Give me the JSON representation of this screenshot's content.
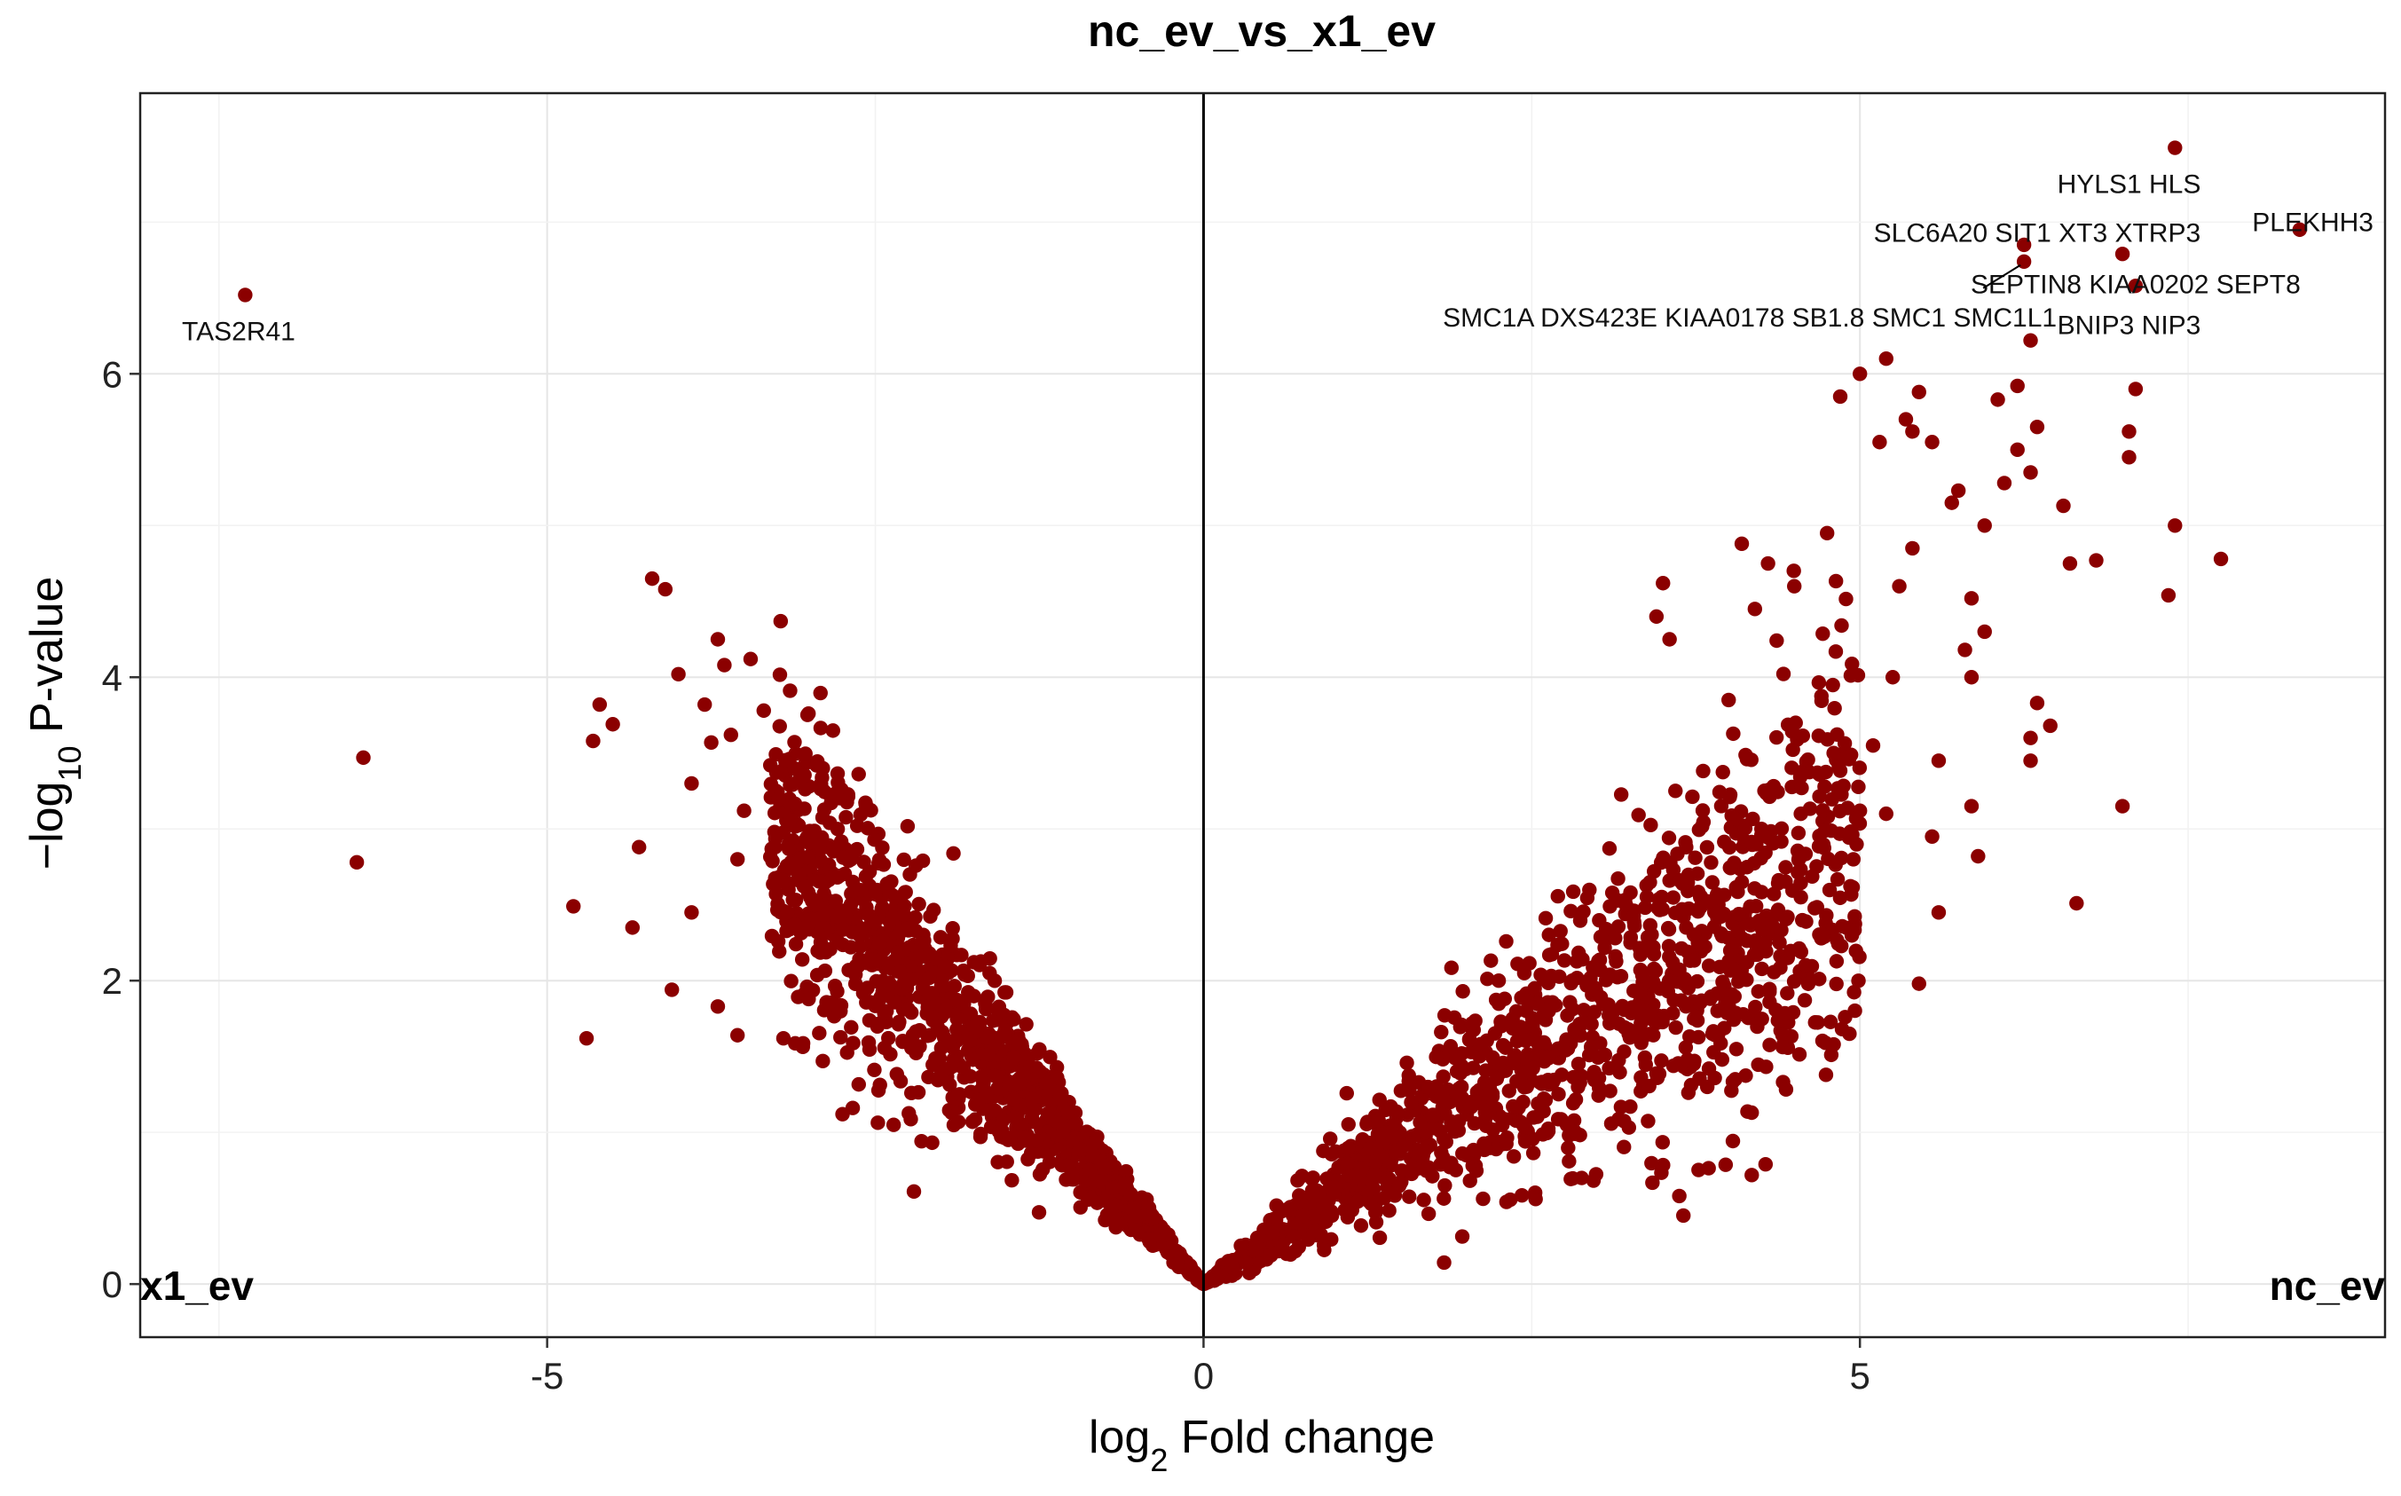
{
  "chart_data": {
    "type": "scatter",
    "title": "nc_ev_vs_x1_ev",
    "xlabel": {
      "prefix": "log",
      "sub": "2",
      "rest": " Fold change"
    },
    "ylabel": {
      "prefix": "−log",
      "sub": "10",
      "rest": " P-value"
    },
    "xlim": [
      -8.1,
      9.0
    ],
    "ylim": [
      -0.35,
      7.85
    ],
    "x_ticks": [
      {
        "value": -5,
        "label": "-5"
      },
      {
        "value": 0,
        "label": "0"
      },
      {
        "value": 5,
        "label": "5"
      }
    ],
    "y_ticks": [
      {
        "value": 0,
        "label": "0"
      },
      {
        "value": 2,
        "label": "2"
      },
      {
        "value": 4,
        "label": "4"
      },
      {
        "value": 6,
        "label": "6"
      }
    ],
    "grid": true,
    "zero_line_x": 0,
    "point_color": "#8B0000",
    "corner_labels": {
      "left": "x1_ev",
      "right": "nc_ev"
    },
    "highlighted_points": [
      {
        "x": -7.3,
        "y": 6.52,
        "label": "TAS2R41"
      },
      {
        "x": 7.4,
        "y": 7.49,
        "label": "HYLS1 HLS"
      },
      {
        "x": 8.35,
        "y": 6.95,
        "label": "PLEKHH3"
      },
      {
        "x": 6.25,
        "y": 6.85,
        "label": "SLC6A20 SIT1 XT3 XTRP3"
      },
      {
        "x": 7.0,
        "y": 6.79,
        "label": "SEPTIN8 KIAA0202 SEPT8"
      },
      {
        "x": 6.25,
        "y": 6.74,
        "label": "SMC1A DXS423E KIAA0178 SB1.8 SMC1 SMC1L1"
      },
      {
        "x": 7.1,
        "y": 6.58,
        "label": "BNIP3 NIP3"
      }
    ],
    "outlier_points": [
      [
        -6.4,
        3.47
      ],
      [
        -6.45,
        2.78
      ],
      [
        -4.8,
        2.49
      ],
      [
        -4.7,
        1.62
      ],
      [
        -4.5,
        3.69
      ],
      [
        -4.6,
        3.82
      ],
      [
        -4.65,
        3.58
      ],
      [
        -4.35,
        2.35
      ],
      [
        -4.3,
        2.88
      ],
      [
        -4.2,
        4.65
      ],
      [
        -4.1,
        4.58
      ],
      [
        -4.0,
        4.02
      ],
      [
        -3.9,
        3.3
      ],
      [
        -3.9,
        2.45
      ],
      [
        -3.8,
        3.82
      ],
      [
        -3.75,
        3.57
      ],
      [
        -3.7,
        4.25
      ],
      [
        -3.65,
        4.08
      ],
      [
        -3.6,
        3.62
      ],
      [
        -3.5,
        3.12
      ],
      [
        -3.55,
        2.8
      ],
      [
        -3.45,
        4.12
      ],
      [
        -3.35,
        3.78
      ],
      [
        -3.3,
        3.42
      ],
      [
        -4.05,
        1.94
      ],
      [
        -3.7,
        1.83
      ],
      [
        -3.55,
        1.64
      ],
      [
        -3.05,
        3.35
      ],
      [
        -2.9,
        3.4
      ],
      [
        -2.9,
        1.47
      ],
      [
        -3.2,
        1.62
      ],
      [
        -2.75,
        1.12
      ],
      [
        7.4,
        5.0
      ],
      [
        7.35,
        4.54
      ],
      [
        7.75,
        4.78
      ],
      [
        6.8,
        4.77
      ],
      [
        6.6,
        4.75
      ],
      [
        7.1,
        5.9
      ],
      [
        7.05,
        5.62
      ],
      [
        7.05,
        5.45
      ],
      [
        6.55,
        5.13
      ],
      [
        7.0,
        3.15
      ],
      [
        6.65,
        2.51
      ],
      [
        6.45,
        3.68
      ],
      [
        6.3,
        3.6
      ],
      [
        6.3,
        3.45
      ],
      [
        6.35,
        3.83
      ],
      [
        6.3,
        6.22
      ],
      [
        6.35,
        5.65
      ],
      [
        6.05,
        5.83
      ],
      [
        6.2,
        5.92
      ],
      [
        6.2,
        5.5
      ],
      [
        6.3,
        5.35
      ],
      [
        6.1,
        5.28
      ],
      [
        5.95,
        4.3
      ],
      [
        5.85,
        4.52
      ],
      [
        5.8,
        4.18
      ],
      [
        5.75,
        5.23
      ],
      [
        5.7,
        5.15
      ],
      [
        5.95,
        5.0
      ],
      [
        5.85,
        4.0
      ],
      [
        5.9,
        2.82
      ],
      [
        5.85,
        3.15
      ],
      [
        5.55,
        2.95
      ],
      [
        5.6,
        2.45
      ],
      [
        5.45,
        1.98
      ],
      [
        5.6,
        3.45
      ],
      [
        5.2,
        6.1
      ],
      [
        5.0,
        6.0
      ],
      [
        4.85,
        5.85
      ],
      [
        5.4,
        5.62
      ],
      [
        5.35,
        5.7
      ],
      [
        5.45,
        5.88
      ],
      [
        5.55,
        5.55
      ],
      [
        5.4,
        4.85
      ],
      [
        5.15,
        5.55
      ],
      [
        4.75,
        4.95
      ],
      [
        4.5,
        4.6
      ],
      [
        4.2,
        4.45
      ],
      [
        4.3,
        4.75
      ],
      [
        4.1,
        4.88
      ],
      [
        3.5,
        4.62
      ],
      [
        3.55,
        4.25
      ],
      [
        3.45,
        4.4
      ],
      [
        4.8,
        3.5
      ],
      [
        4.55,
        3.1
      ],
      [
        4.55,
        2.55
      ],
      [
        4.45,
        2.15
      ],
      [
        4.8,
        1.58
      ],
      [
        4.05,
        1.35
      ],
      [
        3.95,
        1.48
      ],
      [
        3.85,
        1.42
      ],
      [
        4.1,
        2.65
      ],
      [
        4.25,
        3.0
      ],
      [
        4.0,
        3.85
      ],
      [
        5.1,
        3.55
      ],
      [
        5.0,
        3.12
      ],
      [
        4.95,
        2.8
      ],
      [
        5.2,
        3.1
      ],
      [
        5.3,
        4.6
      ],
      [
        5.25,
        4.0
      ]
    ]
  }
}
